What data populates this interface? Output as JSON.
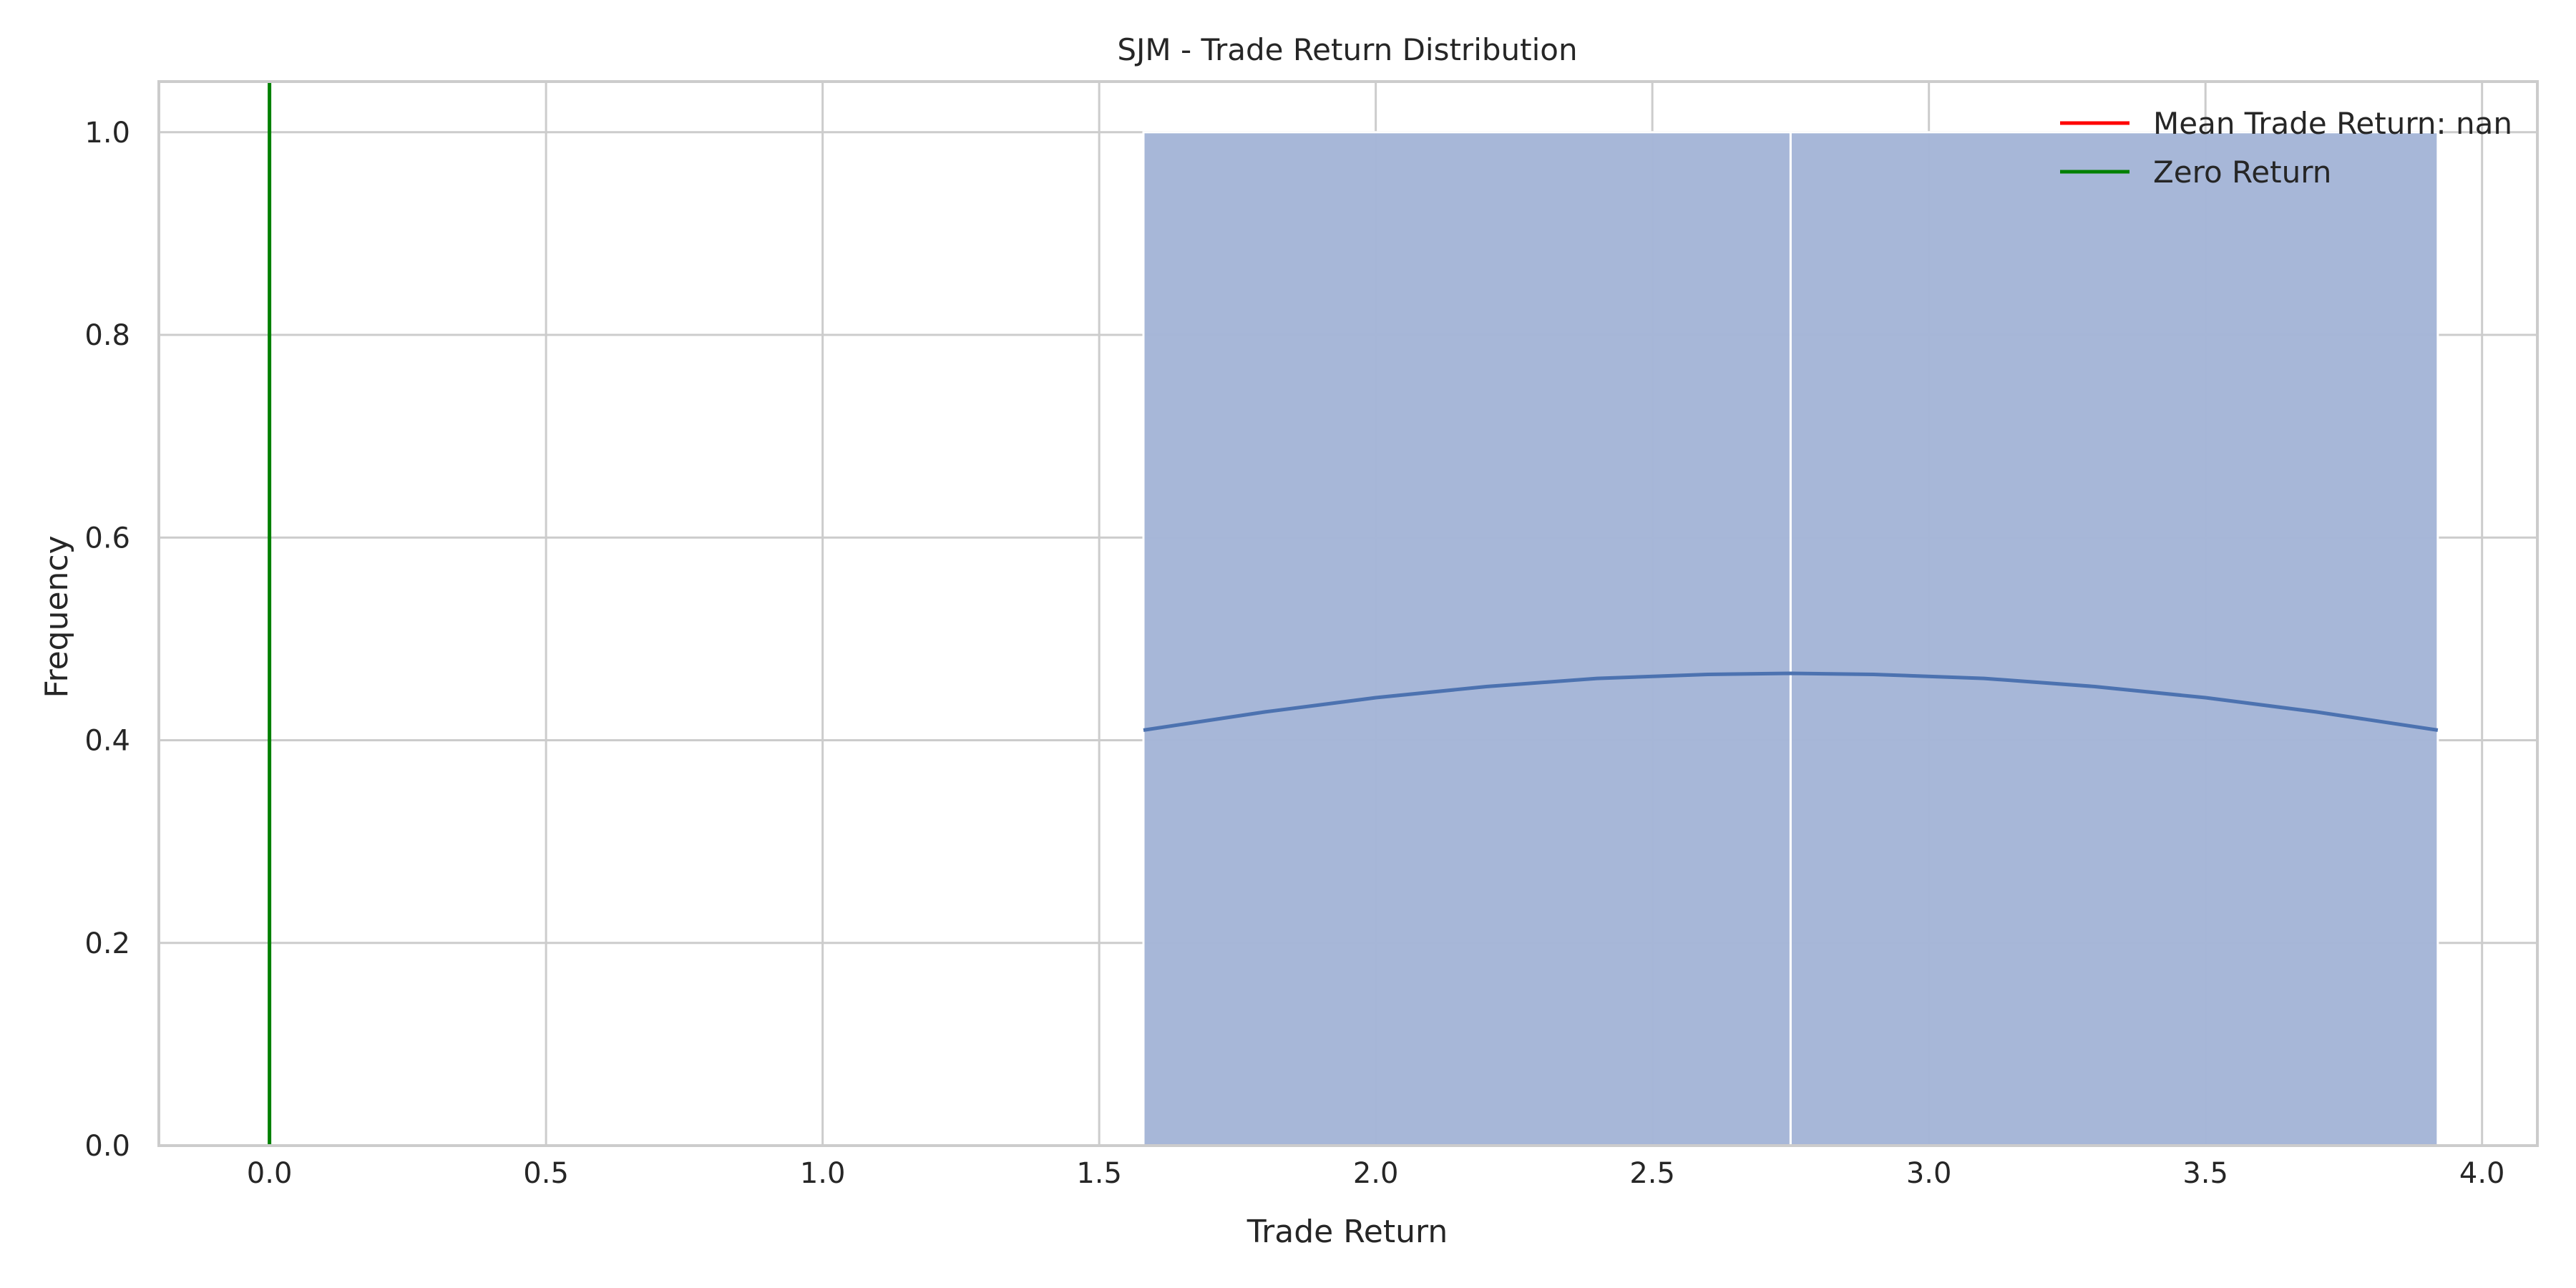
{
  "chart_data": {
    "type": "bar",
    "title": "SJM - Trade Return Distribution",
    "xlabel": "Trade Return",
    "ylabel": "Frequency",
    "xlim": [
      -0.2,
      4.1
    ],
    "ylim": [
      0.0,
      1.05
    ],
    "xticks": [
      "0.0",
      "0.5",
      "1.0",
      "1.5",
      "2.0",
      "2.5",
      "3.0",
      "3.5",
      "4.0"
    ],
    "yticks": [
      "0.0",
      "0.2",
      "0.4",
      "0.6",
      "0.8",
      "1.0"
    ],
    "grid": true,
    "legend_position": "top-right",
    "bins": [
      {
        "x0": 1.58,
        "x1": 2.75,
        "count": 1
      },
      {
        "x0": 2.75,
        "x1": 3.92,
        "count": 1
      }
    ],
    "kde_curve": {
      "x": [
        1.58,
        1.8,
        2.0,
        2.2,
        2.4,
        2.6,
        2.75,
        2.9,
        3.1,
        3.3,
        3.5,
        3.7,
        3.92
      ],
      "y": [
        0.41,
        0.428,
        0.442,
        0.453,
        0.461,
        0.465,
        0.466,
        0.465,
        0.461,
        0.453,
        0.442,
        0.428,
        0.41
      ]
    },
    "lines": [
      {
        "name": "Mean Trade Return: nan",
        "color": "#ff0000",
        "x": null
      },
      {
        "name": "Zero Return",
        "color": "#008000",
        "x": 0.0
      }
    ],
    "colors": {
      "bar_fill": "#a5b6d7",
      "kde": "#4c72b0",
      "grid": "#cccccc",
      "spine": "#cccccc"
    }
  }
}
